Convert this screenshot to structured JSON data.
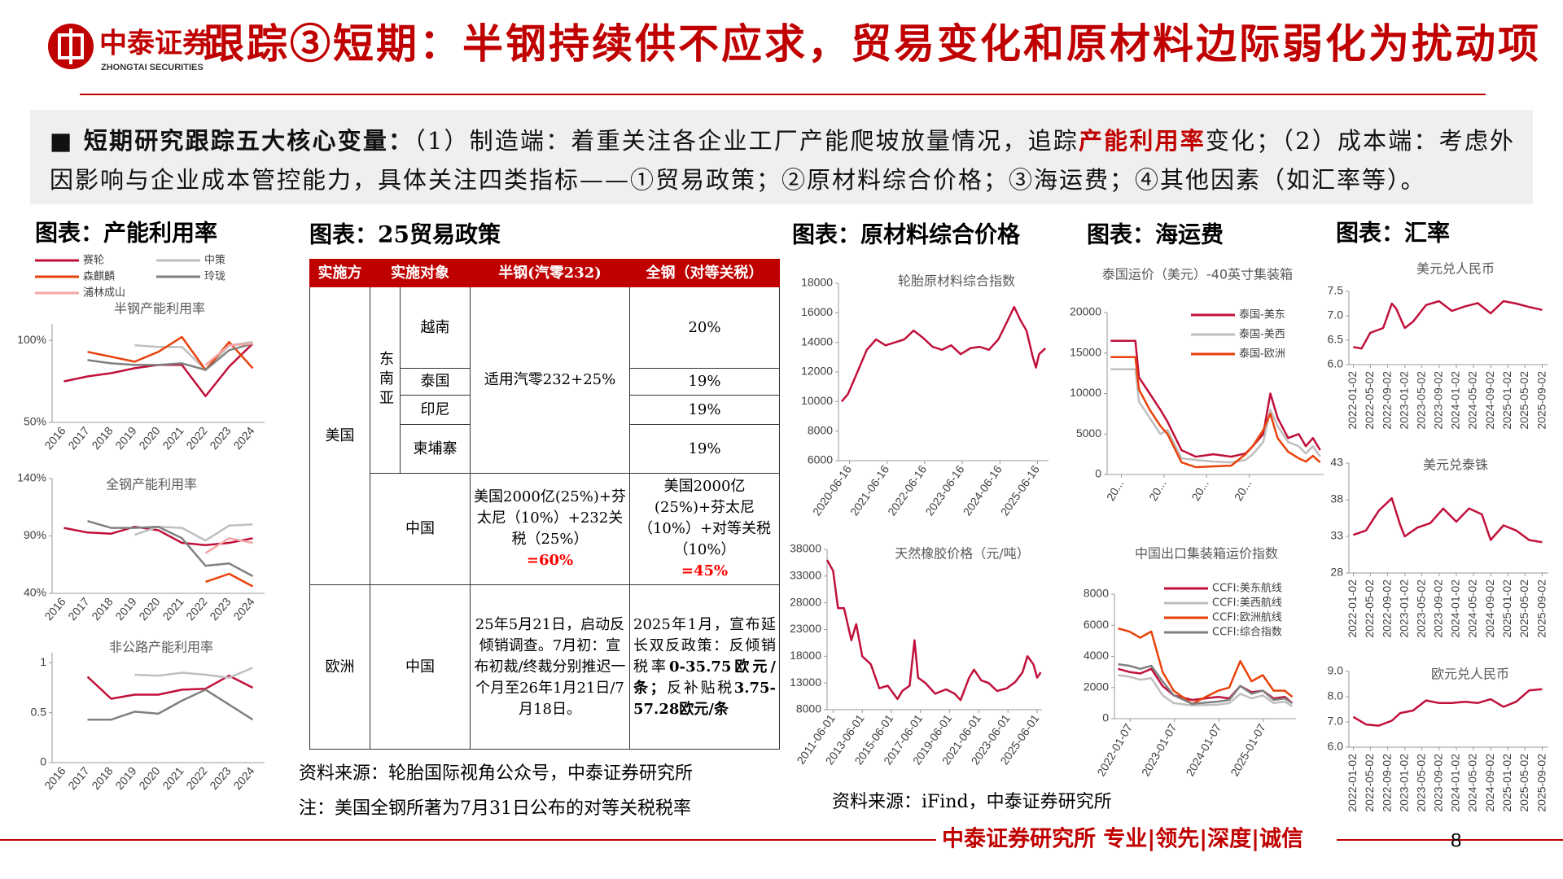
{
  "header": {
    "logo_cn": "中泰证券",
    "logo_en": "ZHONGTAI SECURITIES",
    "title": "跟踪③短期：半钢持续供不应求，贸易变化和原材料边际弱化为扰动项"
  },
  "intro": [
    "■ 短期研究跟踪五大核心变量：",
    "（1）制造端：着重关注各企业工厂产能爬坡放量情况，追踪",
    "产能利用率",
    "变化；（2）成本端：考虑外因影响与企业成本管控能力，具体关注四类指标——①贸易政策；②原材料综合价格；③海运费；④其他因素（如汇率等）。"
  ],
  "sections": [
    "图表：产能利用率",
    "图表：25贸易政策",
    "图表：原材料综合价格",
    "图表：海运费",
    "图表：汇率"
  ],
  "table": {
    "header": [
      "实施方",
      "实施对象",
      "半钢(汽零232)",
      "全钢（对等关税）"
    ],
    "rows": [
      [
        "美国",
        "东南亚",
        "越南",
        "适用汽零232+25%",
        "20%"
      ],
      [
        "泰国",
        "19%"
      ],
      [
        "印尼",
        "19%"
      ],
      [
        "柬埔寨",
        "19%"
      ],
      [
        "中国",
        "美国2000亿(25%)+芬太尼（10%）+232关税（25%）",
        "=60%",
        "美国2000亿(25%)+芬太尼（10%）+对等关税（10%）",
        "=45%"
      ],
      [
        "欧洲",
        "中国",
        "25年5月21日，启动反倾销调查。7月初：宣布初裁/终裁分别推迟一个月至26年1月21日/7月18日。",
        "2025年1月，宣布延长双反政策：反倾销税率",
        "0-35.75欧元/条；",
        "反补贴税",
        "3.75-57.28欧元/条"
      ]
    ]
  },
  "sources": [
    "资料来源：轮胎国际视角公众号，中泰证券研究所",
    "注：美国全钢所著为7月31日公布的对等关税税率",
    "资料来源：iFind，中泰证券研究所"
  ],
  "footer": {
    "org": "中泰证券研究所 专业|领先|深度|诚信",
    "page": 8
  },
  "chart_data": [
    {
      "type": "line",
      "title": "半钢产能利用率",
      "x": [
        2016,
        2017,
        2018,
        2019,
        2020,
        2021,
        2022,
        2023,
        2024
      ],
      "xlim": [
        2015.5,
        2024.5
      ],
      "ylim": [
        50,
        110
      ],
      "yticks": [
        {
          "value": 50,
          "label": "50%"
        },
        {
          "value": 100,
          "label": "100%"
        }
      ],
      "series": [
        {
          "name": "赛轮",
          "color": "#c0103a",
          "values": [
            75,
            78,
            80,
            83,
            85,
            85,
            66,
            84,
            98
          ]
        },
        {
          "name": "中策",
          "color": "#bfbfbf",
          "values": [
            null,
            null,
            null,
            97,
            96,
            96,
            82,
            97,
            99
          ]
        },
        {
          "name": "森麒麟",
          "color": "#e8420a",
          "values": [
            null,
            93,
            90,
            87,
            93,
            102,
            82,
            99,
            83
          ]
        },
        {
          "name": "玲珑",
          "color": "#808080",
          "values": [
            null,
            88,
            86,
            85,
            85,
            86,
            82,
            94,
            98
          ]
        },
        {
          "name": "浦林成山",
          "color": "#f4a6a6",
          "values": [
            null,
            null,
            null,
            null,
            null,
            null,
            85,
            97,
            98
          ]
        }
      ]
    },
    {
      "type": "line",
      "title": "全钢产能利用率",
      "x": [
        2016,
        2017,
        2018,
        2019,
        2020,
        2021,
        2022,
        2023,
        2024
      ],
      "xlim": [
        2015.5,
        2024.5
      ],
      "ylim": [
        40,
        140
      ],
      "yticks": [
        {
          "value": 40,
          "label": "40%"
        },
        {
          "value": 90,
          "label": "90%"
        },
        {
          "value": 140,
          "label": "140%"
        }
      ],
      "series": [
        {
          "color": "#c0103a",
          "values": [
            97,
            93,
            92,
            98,
            95,
            84,
            82,
            84,
            88
          ]
        },
        {
          "color": "#bfbfbf",
          "values": [
            null,
            null,
            null,
            91,
            98,
            97,
            86,
            99,
            100
          ]
        },
        {
          "color": "#e8420a",
          "values": [
            null,
            null,
            null,
            null,
            null,
            null,
            50,
            57,
            46
          ]
        },
        {
          "color": "#808080",
          "values": [
            null,
            103,
            97,
            97,
            98,
            88,
            64,
            66,
            55
          ]
        },
        {
          "color": "#f4a6a6",
          "values": [
            null,
            null,
            null,
            null,
            null,
            null,
            75,
            88,
            84
          ]
        }
      ]
    },
    {
      "type": "line",
      "title": "非公路产能利用率",
      "x": [
        2016,
        2017,
        2018,
        2019,
        2020,
        2021,
        2022,
        2023,
        2024
      ],
      "xlim": [
        2015.5,
        2024.5
      ],
      "ylim": [
        0,
        1.1
      ],
      "yticks": [
        0,
        0.5,
        1
      ],
      "series": [
        {
          "color": "#c0103a",
          "values": [
            null,
            0.86,
            0.64,
            0.68,
            0.68,
            0.73,
            0.74,
            0.87,
            0.75
          ]
        },
        {
          "color": "#bfbfbf",
          "values": [
            null,
            null,
            null,
            0.88,
            0.87,
            0.9,
            0.88,
            0.85,
            0.95
          ]
        },
        {
          "color": "#808080",
          "values": [
            null,
            0.43,
            0.43,
            0.51,
            0.49,
            0.62,
            0.73,
            0.58,
            0.43
          ]
        }
      ]
    },
    {
      "type": "line",
      "title": "轮胎原材料综合指数",
      "x": [
        "2020-04-01",
        "2020-06-01",
        "2020-09-01",
        "2020-12-01",
        "2021-03-01",
        "2021-06-01",
        "2021-09-01",
        "2021-12-01",
        "2022-03-01",
        "2022-06-01",
        "2022-09-01",
        "2022-12-01",
        "2023-03-01",
        "2023-06-01",
        "2023-09-01",
        "2023-12-01",
        "2024-03-01",
        "2024-06-01",
        "2024-09-01",
        "2024-11-01",
        "2025-01-01",
        "2025-03-01",
        "2025-05-01",
        "2025-06-01",
        "2025-07-01",
        "2025-09-01"
      ],
      "xlim": [
        "2020-03-01",
        "2025-10-01"
      ],
      "xticks": [
        "2020-06-16",
        "2021-06-16",
        "2022-06-16",
        "2023-06-16",
        "2024-06-16",
        "2025-06-16"
      ],
      "ylim": [
        6000,
        18000
      ],
      "yticks": [
        6000,
        8000,
        10000,
        12000,
        14000,
        16000,
        18000
      ],
      "series": [
        {
          "color": "#c0103a",
          "values": [
            10000,
            10500,
            12000,
            13500,
            14200,
            13800,
            14000,
            14200,
            14800,
            14300,
            13700,
            13500,
            13800,
            13200,
            13600,
            13700,
            13500,
            14200,
            15500,
            16400,
            15500,
            14800,
            13000,
            12300,
            13200,
            13600
          ]
        }
      ]
    },
    {
      "type": "line",
      "title": "天然橡胶价格（元/吨）",
      "x": [
        "2011-01-01",
        "2011-06-01",
        "2011-10-01",
        "2012-03-01",
        "2012-09-01",
        "2013-01-01",
        "2013-06-01",
        "2014-01-01",
        "2014-08-01",
        "2015-03-01",
        "2015-11-01",
        "2016-03-01",
        "2016-09-01",
        "2017-01-01",
        "2017-04-01",
        "2017-10-01",
        "2018-06-01",
        "2019-03-01",
        "2019-10-01",
        "2020-03-01",
        "2020-10-01",
        "2021-02-01",
        "2021-08-01",
        "2022-02-01",
        "2022-09-01",
        "2023-05-01",
        "2023-12-01",
        "2024-06-01",
        "2024-10-01",
        "2025-03-01",
        "2025-06-01",
        "2025-09-01"
      ],
      "xlim": [
        "2011-01-01",
        "2025-10-01"
      ],
      "xticks": [
        "2011-06-01",
        "2013-06-01",
        "2015-06-01",
        "2017-06-01",
        "2019-06-01",
        "2021-06-01",
        "2023-06-01",
        "2025-06-01"
      ],
      "ylim": [
        8000,
        38000
      ],
      "yticks": [
        8000,
        13000,
        18000,
        23000,
        28000,
        33000,
        38000
      ],
      "series": [
        {
          "color": "#c0103a",
          "values": [
            36000,
            34000,
            27000,
            27000,
            21000,
            24000,
            18000,
            16500,
            12000,
            12500,
            10000,
            11500,
            12500,
            21000,
            14000,
            13000,
            11000,
            11800,
            11000,
            9800,
            14000,
            15500,
            13500,
            13000,
            11500,
            12000,
            13200,
            15000,
            18000,
            16500,
            14000,
            15000
          ]
        }
      ]
    },
    {
      "type": "line",
      "title": "泰国运价（美元）-40英寸集装箱",
      "x": [
        "2020-10-01",
        "2021-05-01",
        "2021-06-01",
        "2021-09-01",
        "2021-12-01",
        "2022-02-01",
        "2022-06-01",
        "2022-10-01",
        "2023-03-01",
        "2023-08-01",
        "2023-12-01",
        "2024-02-01",
        "2024-05-01",
        "2024-07-01",
        "2024-09-01",
        "2024-12-01",
        "2025-03-01",
        "2025-05-01",
        "2025-07-01",
        "2025-09-01"
      ],
      "xlim": [
        "2020-09-01",
        "2025-10-01"
      ],
      "xticks": [
        {
          "value": "2021-01-01",
          "label": "20..."
        },
        {
          "value": "2022-01-01",
          "label": "20..."
        },
        {
          "value": "2023-01-01",
          "label": "20..."
        },
        {
          "value": "2024-01-01",
          "label": "20..."
        }
      ],
      "ylim": [
        0,
        20000
      ],
      "yticks": [
        0,
        5000,
        10000,
        15000,
        20000
      ],
      "series": [
        {
          "name": "泰国-美东",
          "color": "#c0103a",
          "values": [
            16500,
            16500,
            12000,
            10000,
            8000,
            6500,
            3000,
            2200,
            2500,
            2200,
            2600,
            3500,
            5000,
            10000,
            7000,
            4500,
            5000,
            3500,
            4500,
            3000
          ]
        },
        {
          "name": "泰国-美西",
          "color": "#bfbfbf",
          "values": [
            13000,
            13000,
            9000,
            7000,
            5000,
            5500,
            2000,
            1800,
            1600,
            1500,
            1800,
            2500,
            4000,
            8000,
            6000,
            4000,
            3500,
            2600,
            3500,
            2200
          ]
        },
        {
          "name": "泰国-欧洲",
          "color": "#e8420a",
          "values": [
            14500,
            14500,
            10500,
            8000,
            6000,
            5000,
            1500,
            900,
            1000,
            1100,
            2500,
            3500,
            5500,
            7500,
            4500,
            2800,
            2000,
            1600,
            2300,
            1500
          ]
        }
      ]
    },
    {
      "type": "line",
      "title": "中国出口集装箱运价指数",
      "x": [
        "2021-10-01",
        "2022-01-01",
        "2022-04-01",
        "2022-07-01",
        "2022-10-01",
        "2023-01-01",
        "2023-06-01",
        "2024-01-01",
        "2024-04-01",
        "2024-07-01",
        "2024-10-01",
        "2025-01-01",
        "2025-04-01",
        "2025-07-01",
        "2025-09-01"
      ],
      "xlim": [
        "2021-09-01",
        "2025-10-01"
      ],
      "xticks": [
        "2022-01-07",
        "2023-01-07",
        "2024-01-07",
        "2025-01-07"
      ],
      "ylim": [
        0,
        8000
      ],
      "yticks": [
        0,
        2000,
        4000,
        6000,
        8000
      ],
      "series": [
        {
          "name": "CCFI:美东航线",
          "color": "#c0103a",
          "values": [
            3200,
            3000,
            2900,
            3200,
            2100,
            1500,
            1200,
            1400,
            1300,
            2100,
            1700,
            1800,
            1300,
            1400,
            1000
          ]
        },
        {
          "name": "CCFI:美西航线",
          "color": "#bfbfbf",
          "values": [
            2800,
            2700,
            2500,
            2600,
            1500,
            1000,
            850,
            900,
            1000,
            1600,
            1300,
            1500,
            1000,
            1100,
            800
          ]
        },
        {
          "name": "CCFI:欧洲航线",
          "color": "#e8420a",
          "values": [
            5800,
            5600,
            5200,
            5600,
            3000,
            1800,
            950,
            1800,
            2000,
            3700,
            2400,
            2800,
            1800,
            1800,
            1400
          ]
        },
        {
          "name": "CCFI:综合指数",
          "color": "#808080",
          "values": [
            3500,
            3400,
            3200,
            3400,
            2400,
            1500,
            950,
            1100,
            1200,
            2100,
            1600,
            1800,
            1200,
            1300,
            1000
          ]
        }
      ]
    },
    {
      "type": "line",
      "title": "美元兑人民币",
      "x": [
        "2022-01-01",
        "2022-03-01",
        "2022-05-01",
        "2022-08-01",
        "2022-10-01",
        "2022-11-01",
        "2023-01-01",
        "2023-03-01",
        "2023-06-01",
        "2023-09-01",
        "2023-12-01",
        "2024-03-01",
        "2024-06-01",
        "2024-09-01",
        "2024-12-01",
        "2025-03-01",
        "2025-06-01",
        "2025-09-01"
      ],
      "xlim": [
        "2021-12-01",
        "2025-10-15"
      ],
      "xticks": [
        "2022-01-02",
        "2022-05-02",
        "2022-09-02",
        "2023-01-02",
        "2023-05-02",
        "2023-09-02",
        "2024-01-02",
        "2024-05-02",
        "2024-09-02",
        "2025-01-02",
        "2025-05-02",
        "2025-09-02"
      ],
      "ylim": [
        6,
        7.5
      ],
      "yticks": [
        {
          "value": 6,
          "label": "6.0"
        },
        6.5,
        {
          "value": 7,
          "label": "7.0"
        },
        7.5
      ],
      "series": [
        {
          "color": "#c0103a",
          "values": [
            6.36,
            6.33,
            6.65,
            6.75,
            7.25,
            7.15,
            6.75,
            6.88,
            7.22,
            7.3,
            7.1,
            7.19,
            7.26,
            7.05,
            7.3,
            7.25,
            7.18,
            7.12
          ]
        }
      ]
    },
    {
      "type": "line",
      "title": "美元兑泰铢",
      "x": [
        "2022-01-01",
        "2022-04-01",
        "2022-07-01",
        "2022-10-01",
        "2022-12-01",
        "2023-01-01",
        "2023-04-01",
        "2023-07-01",
        "2023-10-01",
        "2024-01-01",
        "2024-04-01",
        "2024-07-01",
        "2024-09-01",
        "2024-12-01",
        "2025-03-01",
        "2025-06-01",
        "2025-09-01"
      ],
      "xlim": [
        "2021-12-01",
        "2025-10-15"
      ],
      "xticks": [
        "2022-01-02",
        "2022-05-02",
        "2022-09-02",
        "2023-01-02",
        "2023-05-02",
        "2023-09-02",
        "2024-01-02",
        "2024-05-02",
        "2024-09-02",
        "2025-01-02",
        "2025-05-02",
        "2025-09-02"
      ],
      "ylim": [
        28,
        43
      ],
      "yticks": [
        28,
        33,
        38,
        43
      ],
      "series": [
        {
          "color": "#c0103a",
          "values": [
            33.2,
            33.8,
            36.5,
            38.2,
            34.5,
            33,
            34.2,
            34.8,
            36.8,
            35,
            36.8,
            36,
            32.5,
            34.5,
            33.8,
            32.5,
            32.2
          ]
        }
      ]
    },
    {
      "type": "line",
      "title": "欧元兑人民币",
      "x": [
        "2022-01-01",
        "2022-04-01",
        "2022-07-01",
        "2022-10-01",
        "2022-12-01",
        "2023-03-01",
        "2023-06-01",
        "2023-09-01",
        "2023-12-01",
        "2024-03-01",
        "2024-06-01",
        "2024-09-01",
        "2024-12-01",
        "2025-03-01",
        "2025-06-01",
        "2025-09-01"
      ],
      "xlim": [
        "2021-12-01",
        "2025-10-15"
      ],
      "xticks": [
        "2022-01-02",
        "2022-05-02",
        "2022-09-02",
        "2023-01-02",
        "2023-05-02",
        "2023-09-02",
        "2024-01-02",
        "2024-05-02",
        "2024-09-02",
        "2025-01-02",
        "2025-05-02",
        "2025-09-02"
      ],
      "ylim": [
        6,
        9
      ],
      "yticks": [
        {
          "value": 6,
          "label": "6.0"
        },
        {
          "value": 7,
          "label": "7.0"
        },
        {
          "value": 8,
          "label": "8.0"
        },
        {
          "value": 9,
          "label": "9.0"
        }
      ],
      "series": [
        {
          "color": "#c0103a",
          "values": [
            7.2,
            6.9,
            6.85,
            7.05,
            7.35,
            7.45,
            7.85,
            7.75,
            7.75,
            7.8,
            7.75,
            7.9,
            7.6,
            7.8,
            8.25,
            8.3
          ]
        }
      ]
    }
  ]
}
